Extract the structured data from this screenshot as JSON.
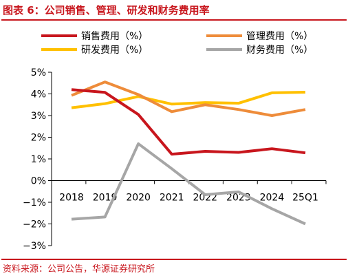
{
  "header": {
    "title": "图表 6：公司销售、管理、研发和财务费用率"
  },
  "footer": {
    "source": "资料来源：公司公告，华源证券研究所"
  },
  "chart_data": {
    "type": "line",
    "title": "",
    "xlabel": "",
    "ylabel": "",
    "categories": [
      "2018",
      "2019",
      "2020",
      "2021",
      "2022",
      "2023",
      "2024",
      "25Q1"
    ],
    "ylim": [
      -3,
      5
    ],
    "yticks": [
      5,
      4,
      3,
      2,
      1,
      0,
      -1,
      -2,
      -3
    ],
    "ytick_labels": [
      "5%",
      "4%",
      "3%",
      "2%",
      "1%",
      "0%",
      "−1%",
      "−2%",
      "−3%"
    ],
    "grid": false,
    "legend_position": "top",
    "series": [
      {
        "name": "销售费用（%）",
        "color": "#c8161d",
        "values": [
          4.2,
          4.07,
          3.05,
          1.22,
          1.35,
          1.3,
          1.47,
          1.28
        ]
      },
      {
        "name": "管理费用（%）",
        "color": "#ee8c3a",
        "values": [
          3.93,
          4.55,
          3.97,
          3.18,
          3.5,
          3.28,
          3.0,
          3.28
        ]
      },
      {
        "name": "研发费用（%）",
        "color": "#ffc000",
        "values": [
          3.36,
          3.55,
          3.88,
          3.53,
          3.6,
          3.57,
          4.05,
          4.08
        ]
      },
      {
        "name": "财务费用（%）",
        "color": "#a6a6a6",
        "values": [
          -1.78,
          -1.68,
          1.7,
          0.55,
          -0.65,
          -0.52,
          -1.3,
          -2.0
        ]
      }
    ]
  }
}
